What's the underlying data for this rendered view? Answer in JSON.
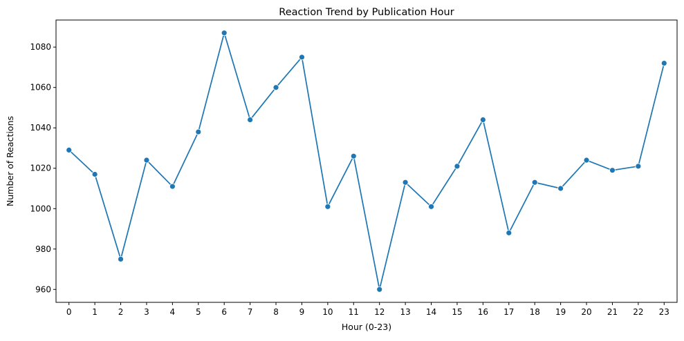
{
  "chart_data": {
    "type": "line",
    "title": "Reaction Trend by Publication Hour",
    "xlabel": "Hour (0-23)",
    "ylabel": "Number of Reactions",
    "x": [
      0,
      1,
      2,
      3,
      4,
      5,
      6,
      7,
      8,
      9,
      10,
      11,
      12,
      13,
      14,
      15,
      16,
      17,
      18,
      19,
      20,
      21,
      22,
      23
    ],
    "series": [
      {
        "values": [
          1029,
          1017,
          975,
          1024,
          1011,
          1038,
          1087,
          1044,
          1060,
          1075,
          1001,
          1026,
          960,
          1013,
          1001,
          1021,
          1044,
          988,
          1013,
          1010,
          1024,
          1019,
          1021,
          1072
        ],
        "color": "#1f77b4",
        "marker": "circle"
      }
    ],
    "xlim": [
      -0.5,
      23.5
    ],
    "ylim": [
      953.6,
      1093.4
    ],
    "yticks": [
      960,
      980,
      1000,
      1020,
      1040,
      1060,
      1080
    ],
    "xticks": [
      0,
      1,
      2,
      3,
      4,
      5,
      6,
      7,
      8,
      9,
      10,
      11,
      12,
      13,
      14,
      15,
      16,
      17,
      18,
      19,
      20,
      21,
      22,
      23
    ],
    "grid": false,
    "legend": "none"
  }
}
